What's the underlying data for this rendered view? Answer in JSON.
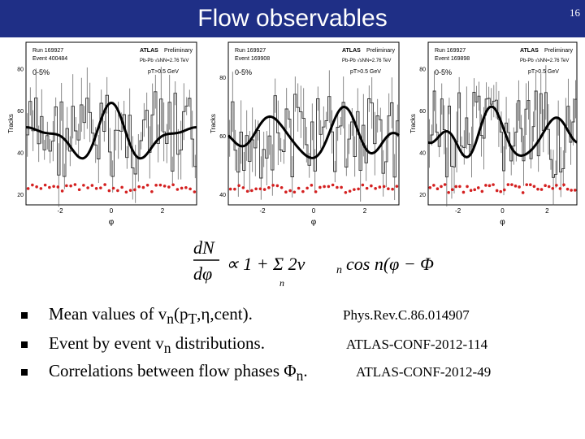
{
  "slide": {
    "title": "Flow observables",
    "number": "16"
  },
  "panels": [
    {
      "run": "Run 169927",
      "event": "Event 400484",
      "atlas": "ATLAS",
      "prelim": "Preliminary",
      "energy": "Pb-Pb √sNN=2.76 TeV",
      "centrality": "0-5%",
      "pt_cut": "pT>0.5 GeV",
      "y_ticks": [
        "20",
        "40",
        "60",
        "80"
      ],
      "x_ticks": [
        "-2",
        "0",
        "2"
      ],
      "xlabel": "φ",
      "ylabel": "Tracks"
    },
    {
      "run": "Run 169927",
      "event": "Event 169908",
      "atlas": "ATLAS",
      "prelim": "Preliminary",
      "energy": "Pb-Pb √sNN=2.76 TeV",
      "centrality": "0-5%",
      "pt_cut": "pT>0.5 GeV",
      "y_ticks": [
        "40",
        "60",
        "80"
      ],
      "x_ticks": [
        "-2",
        "0",
        "2"
      ],
      "xlabel": "φ",
      "ylabel": "Tracks"
    },
    {
      "run": "Run 169927",
      "event": "Event 169898",
      "atlas": "ATLAS",
      "prelim": "Preliminary",
      "energy": "Pb-Pb √sNN=2.76 TeV",
      "centrality": "0-5%",
      "pt_cut": "pT>0.5 GeV",
      "y_ticks": [
        "20",
        "40",
        "60",
        "80"
      ],
      "x_ticks": [
        "-2",
        "0",
        "2"
      ],
      "xlabel": "φ",
      "ylabel": "Tracks"
    }
  ],
  "formula": {
    "lhs_num": "dN",
    "lhs_den": "dφ",
    "rhs": "∝ 1 + Σ 2v",
    "sub_n": "n",
    "cos_part": "cos n(φ − Φ",
    "close": ")"
  },
  "bullets": [
    {
      "pre": "Mean values of v",
      "sub": "n",
      "mid": "(p",
      "sub2": "T",
      "post": ",η,cent).",
      "ref": "Phys.Rev.C.86.014907"
    },
    {
      "pre": "Event by event v",
      "sub": "n",
      "post": " distributions.",
      "ref": "ATLAS-CONF-2012-114"
    },
    {
      "pre": "Correlations between flow phases Φ",
      "sub": "n",
      "post": ".",
      "ref": "ATLAS-CONF-2012-49"
    }
  ],
  "colors": {
    "title_bar": "#1f2f86",
    "red_markers": "#d42020"
  }
}
